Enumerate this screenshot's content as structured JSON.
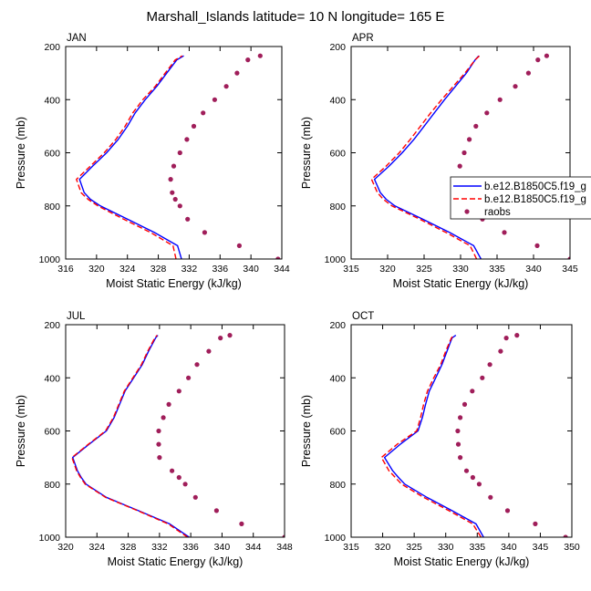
{
  "title": "Marshall_Islands  latitude= 10 N longitude= 165 E",
  "colors": {
    "model1": "#0000ff",
    "model2": "#ff0000",
    "raobs": "#a01e5a"
  },
  "legend": {
    "entries": [
      {
        "label": "b.e12.B1850C5.f19_g",
        "style": "solid",
        "color": "#0000ff"
      },
      {
        "label": "b.e12.B1850C5.f19_g",
        "style": "dashed",
        "color": "#ff0000"
      },
      {
        "label": "raobs",
        "style": "dot",
        "color": "#a01e5a"
      }
    ]
  },
  "chart_data": [
    {
      "type": "line",
      "panel": "JAN",
      "xlabel": "Moist Static Energy (kJ/kg)",
      "ylabel": "Pressure (mb)",
      "xlim": [
        316,
        344
      ],
      "ylim": [
        1000,
        200
      ],
      "y_inverted": true,
      "xticks": [
        316,
        320,
        324,
        328,
        332,
        336,
        340,
        344
      ],
      "xtick_labels": [
        "316",
        "320",
        "324",
        "328",
        "332",
        "336",
        "340",
        "344"
      ],
      "yticks": [
        200,
        400,
        600,
        800,
        1000
      ],
      "pressure": [
        1000,
        950,
        900,
        850,
        800,
        775,
        750,
        700,
        650,
        600,
        550,
        500,
        450,
        400,
        350,
        300,
        250,
        235
      ],
      "series": [
        {
          "name": "b.e12.B1850C5.f19_g",
          "style": "solid",
          "color": "#0000ff",
          "values": [
            331.0,
            330.5,
            327.5,
            324.0,
            320.5,
            319.2,
            318.4,
            317.8,
            319.5,
            321.3,
            322.8,
            324.0,
            325.0,
            326.3,
            327.8,
            329.1,
            330.4,
            331.3
          ]
        },
        {
          "name": "b.e12.B1850C5.f19_g",
          "style": "dashed",
          "color": "#ff0000",
          "values": [
            330.3,
            329.9,
            327.0,
            323.5,
            320.2,
            318.9,
            318.0,
            317.4,
            319.2,
            321.0,
            322.5,
            323.7,
            324.7,
            326.0,
            327.6,
            328.9,
            330.2,
            331.1
          ]
        },
        {
          "name": "raobs",
          "style": "dot",
          "color": "#a01e5a",
          "values": [
            343.5,
            338.5,
            334.0,
            331.8,
            330.8,
            330.2,
            329.8,
            329.6,
            330.0,
            330.8,
            331.7,
            332.6,
            333.8,
            335.3,
            336.8,
            338.2,
            339.6,
            341.2
          ]
        }
      ]
    },
    {
      "type": "line",
      "panel": "APR",
      "xlabel": "Moist Static Energy (kJ/kg)",
      "ylabel": "Pressure (mb)",
      "xlim": [
        315,
        345
      ],
      "ylim": [
        1000,
        200
      ],
      "y_inverted": true,
      "xticks": [
        315,
        320,
        325,
        330,
        335,
        340,
        345
      ],
      "xtick_labels": [
        "315",
        "320",
        "325",
        "330",
        "335",
        "340",
        "345"
      ],
      "yticks": [
        200,
        400,
        600,
        800,
        1000
      ],
      "pressure": [
        1000,
        950,
        900,
        850,
        800,
        775,
        750,
        700,
        650,
        600,
        550,
        500,
        450,
        400,
        350,
        300,
        250,
        235
      ],
      "series": [
        {
          "name": "b.e12.B1850C5.f19_g",
          "style": "solid",
          "color": "#0000ff",
          "values": [
            332.8,
            331.8,
            328.5,
            324.8,
            321.0,
            319.8,
            319.0,
            318.2,
            320.2,
            322.0,
            323.6,
            325.0,
            326.4,
            327.8,
            329.3,
            330.8,
            332.0,
            332.5
          ]
        },
        {
          "name": "b.e12.B1850C5.f19_g",
          "style": "dashed",
          "color": "#ff0000",
          "values": [
            332.2,
            331.3,
            328.0,
            324.4,
            320.6,
            319.4,
            318.6,
            317.8,
            319.8,
            321.6,
            323.1,
            324.5,
            325.9,
            327.4,
            329.0,
            330.6,
            332.0,
            332.6
          ]
        },
        {
          "name": "raobs",
          "style": "dot",
          "color": "#a01e5a",
          "values": [
            345.0,
            340.5,
            336.0,
            333.0,
            331.2,
            330.4,
            329.9,
            329.6,
            329.9,
            330.5,
            331.2,
            332.1,
            333.6,
            335.4,
            337.5,
            339.3,
            340.6,
            341.8
          ]
        }
      ]
    },
    {
      "type": "line",
      "panel": "JUL",
      "xlabel": "Moist Static Energy (kJ/kg)",
      "ylabel": "Pressure (mb)",
      "xlim": [
        320,
        348
      ],
      "ylim": [
        1000,
        200
      ],
      "y_inverted": true,
      "xticks": [
        320,
        324,
        328,
        332,
        336,
        340,
        344,
        348
      ],
      "xtick_labels": [
        "320",
        "324",
        "328",
        "332",
        "336",
        "340",
        "344",
        "348"
      ],
      "yticks": [
        200,
        400,
        600,
        800,
        1000
      ],
      "pressure": [
        1000,
        950,
        900,
        850,
        800,
        775,
        750,
        700,
        650,
        600,
        550,
        500,
        450,
        400,
        350,
        300,
        250,
        240
      ],
      "series": [
        {
          "name": "b.e12.B1850C5.f19_g",
          "style": "solid",
          "color": "#0000ff",
          "values": [
            335.8,
            333.3,
            329.3,
            325.2,
            322.6,
            322.0,
            321.5,
            320.9,
            323.0,
            325.2,
            326.2,
            326.9,
            327.6,
            328.7,
            329.8,
            330.6,
            331.5,
            331.8
          ]
        },
        {
          "name": "b.e12.B1850C5.f19_g",
          "style": "dashed",
          "color": "#ff0000",
          "values": [
            335.6,
            333.1,
            329.2,
            325.1,
            322.5,
            321.9,
            321.4,
            320.8,
            322.9,
            325.1,
            326.1,
            326.8,
            327.5,
            328.6,
            329.7,
            330.5,
            331.4,
            331.7
          ]
        },
        {
          "name": "raobs",
          "style": "dot",
          "color": "#a01e5a",
          "values": [
            348.0,
            342.5,
            339.3,
            336.6,
            335.3,
            334.5,
            333.6,
            332.0,
            331.9,
            331.9,
            332.5,
            333.2,
            334.5,
            335.7,
            336.8,
            338.3,
            339.8,
            341.0
          ]
        }
      ]
    },
    {
      "type": "line",
      "panel": "OCT",
      "xlabel": "Moist Static Energy (kJ/kg)",
      "ylabel": "Pressure (mb)",
      "xlim": [
        315,
        350
      ],
      "ylim": [
        1000,
        200
      ],
      "y_inverted": true,
      "xticks": [
        315,
        320,
        325,
        330,
        335,
        340,
        345,
        350
      ],
      "xtick_labels": [
        "315",
        "320",
        "325",
        "330",
        "335",
        "340",
        "345",
        "350"
      ],
      "yticks": [
        200,
        400,
        600,
        800,
        1000
      ],
      "pressure": [
        1000,
        950,
        900,
        850,
        800,
        775,
        750,
        700,
        650,
        600,
        550,
        500,
        450,
        400,
        350,
        300,
        250,
        240
      ],
      "series": [
        {
          "name": "b.e12.B1850C5.f19_g",
          "style": "solid",
          "color": "#0000ff",
          "values": [
            336.0,
            334.8,
            331.0,
            327.0,
            323.5,
            322.5,
            321.6,
            320.3,
            322.8,
            325.6,
            326.3,
            326.8,
            327.4,
            328.4,
            329.4,
            330.2,
            331.0,
            331.6
          ]
        },
        {
          "name": "b.e12.B1850C5.f19_g",
          "style": "dashed",
          "color": "#ff0000",
          "values": [
            335.6,
            334.3,
            330.5,
            326.5,
            323.0,
            322.0,
            321.0,
            319.8,
            322.3,
            325.4,
            326.0,
            326.5,
            327.1,
            328.1,
            329.2,
            330.0,
            330.9,
            331.3
          ]
        },
        {
          "name": "raobs",
          "style": "dot",
          "color": "#a01e5a",
          "values": [
            349.0,
            344.2,
            339.8,
            337.1,
            335.3,
            334.3,
            333.3,
            332.3,
            332.0,
            331.9,
            332.3,
            333.0,
            334.2,
            335.8,
            337.0,
            338.7,
            339.6,
            341.3
          ]
        }
      ]
    }
  ]
}
